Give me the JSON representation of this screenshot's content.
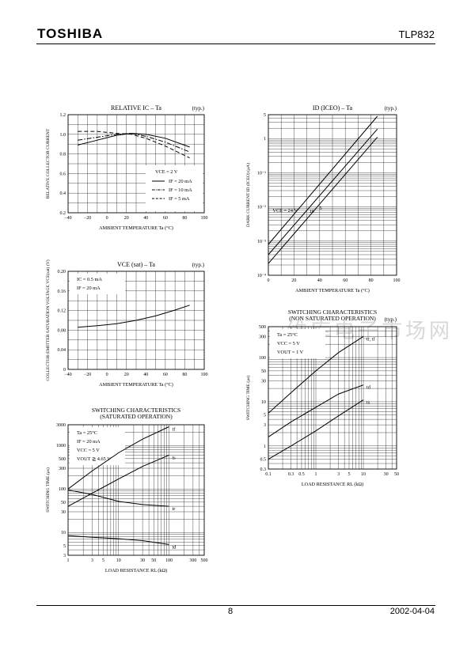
{
  "header": {
    "brand": "TOSHIBA",
    "part": "TLP832"
  },
  "footer": {
    "page": "8",
    "date": "2002-04-04"
  },
  "watermark": "维库电子市场网",
  "chart_data": [
    {
      "id": "relative-ic-ta",
      "type": "line",
      "title": "RELATIVE IC – Ta",
      "typ": "(typ.)",
      "xlabel": "AMBIENT TEMPERATURE   Ta   (°C)",
      "ylabel": "RELATIVE COLLECTOR CURRENT",
      "xlim": [
        -40,
        100
      ],
      "ylim": [
        0.2,
        1.2
      ],
      "x_ticks": [
        "−40",
        "−20",
        "0",
        "20",
        "40",
        "60",
        "80",
        "100"
      ],
      "y_ticks": [
        "0.2",
        "0.4",
        "0.6",
        "0.8",
        "1.0",
        "1.2"
      ],
      "conditions": [
        "VCE = 2 V"
      ],
      "legend": "inside bottom-right",
      "series": [
        {
          "name": "IF = 20 mA",
          "style": "solid",
          "x": [
            -30,
            -10,
            10,
            25,
            40,
            60,
            85
          ],
          "y": [
            0.89,
            0.94,
            0.99,
            1.01,
            1.0,
            0.96,
            0.87
          ]
        },
        {
          "name": "IF = 10 mA",
          "style": "dashdot",
          "x": [
            -30,
            -10,
            10,
            25,
            40,
            60,
            85
          ],
          "y": [
            0.94,
            0.97,
            1.0,
            1.01,
            0.98,
            0.92,
            0.82
          ]
        },
        {
          "name": "IF = 5 mA",
          "style": "dashed",
          "x": [
            -30,
            -10,
            10,
            25,
            40,
            60,
            85
          ],
          "y": [
            1.03,
            1.03,
            1.01,
            1.0,
            0.96,
            0.88,
            0.76
          ]
        }
      ]
    },
    {
      "id": "id-iceo-ta",
      "type": "line",
      "title": "ID (ICEO) – Ta",
      "typ": "(typ.)",
      "xlabel": "AMBIENT TEMPERATURE   Ta   (°C)",
      "ylabel": "DARK CURRENT   ID (ICEO)   (μA)",
      "xlim": [
        0,
        100
      ],
      "ylim": [
        0.0001,
        5
      ],
      "yscale": "log",
      "x_ticks": [
        "0",
        "20",
        "40",
        "60",
        "80",
        "100"
      ],
      "y_ticks": [
        "10⁻⁴",
        "10⁻³",
        "10⁻²",
        "10⁻¹",
        "1",
        "5"
      ],
      "series": [
        {
          "name": "VCE = 24 V",
          "x": [
            0,
            85
          ],
          "y": [
            0.0008,
            4.5
          ]
        },
        {
          "name": "10",
          "x": [
            0,
            85
          ],
          "y": [
            0.0004,
            1.9
          ]
        },
        {
          "name": "5",
          "x": [
            0,
            85
          ],
          "y": [
            0.00022,
            1.1
          ]
        }
      ]
    },
    {
      "id": "vcesat-ta",
      "type": "line",
      "title": "VCE (sat) – Ta",
      "typ": "(typ.)",
      "xlabel": "AMBIENT TEMPERATURE   Ta   (°C)",
      "ylabel": "COLLECTOR-EMITTER SATURATION VOLTAGE   VCE(sat)   (V)",
      "xlim": [
        -40,
        100
      ],
      "ylim": [
        0,
        0.2
      ],
      "x_ticks": [
        "−40",
        "−20",
        "0",
        "20",
        "40",
        "60",
        "80",
        "100"
      ],
      "y_ticks": [
        "0",
        "0.04",
        "0.08",
        "0.12",
        "0.16",
        "0.20"
      ],
      "conditions": [
        "IC = 0.5 mA",
        "IF = 20 mA"
      ],
      "series": [
        {
          "name": "",
          "x": [
            -30,
            -10,
            10,
            30,
            50,
            70,
            85
          ],
          "y": [
            0.086,
            0.089,
            0.093,
            0.1,
            0.109,
            0.121,
            0.131
          ]
        }
      ]
    },
    {
      "id": "switching-sat",
      "type": "line",
      "title": "SWITCHING CHARACTERISTICS",
      "subtitle": "(SATURATED OPERATION)",
      "xlabel": "LOAD RESISTANCE   RL   (kΩ)",
      "ylabel": "SWITCHING TIME   (μs)",
      "xlim": [
        1,
        500
      ],
      "ylim": [
        3,
        3000
      ],
      "xscale": "log",
      "yscale": "log",
      "x_ticks": [
        "1",
        "3",
        "5",
        "10",
        "30",
        "50",
        "100",
        "300",
        "500"
      ],
      "y_ticks": [
        "3",
        "5",
        "10",
        "30",
        "50",
        "100",
        "300",
        "500",
        "1000",
        "3000"
      ],
      "conditions": [
        "Ta = 25°C",
        "IF = 20 mA",
        "VCC = 5 V",
        "VOUT ≧ 4.65 V"
      ],
      "series": [
        {
          "name": "tf",
          "x": [
            1,
            3,
            10,
            30,
            100
          ],
          "y": [
            100,
            260,
            680,
            1400,
            2700
          ]
        },
        {
          "name": "ts",
          "x": [
            1,
            3,
            10,
            30,
            100
          ],
          "y": [
            40,
            80,
            170,
            330,
            600
          ]
        },
        {
          "name": "tr",
          "x": [
            1,
            3,
            10,
            30,
            100
          ],
          "y": [
            95,
            75,
            52,
            44,
            40
          ]
        },
        {
          "name": "td",
          "x": [
            1,
            3,
            10,
            30,
            100
          ],
          "y": [
            8.5,
            7.8,
            7.2,
            6.5,
            5.3
          ]
        }
      ]
    },
    {
      "id": "switching-nonsat",
      "type": "line",
      "title": "SWITCHING CHARACTERISTICS",
      "subtitle": "(NON SATURATED OPERATION)",
      "typ": "(typ.)",
      "xlabel": "LOAD RESISTANCE   RL   (kΩ)",
      "ylabel": "SWITCHING TIME   (μs)",
      "xlim": [
        0.1,
        50
      ],
      "ylim": [
        0.3,
        500
      ],
      "xscale": "log",
      "yscale": "log",
      "x_ticks": [
        "0.1",
        "0.3",
        "0.5",
        "1",
        "3",
        "5",
        "10",
        "30",
        "50"
      ],
      "y_ticks": [
        "0.3",
        "0.5",
        "1",
        "3",
        "5",
        "10",
        "30",
        "50",
        "100",
        "300",
        "500"
      ],
      "conditions": [
        "Ta = 25°C",
        "VCC = 5 V",
        "VOUT = 1 V"
      ],
      "series": [
        {
          "name": "tr, tf",
          "x": [
            0.1,
            0.3,
            1,
            3,
            10
          ],
          "y": [
            5.5,
            16,
            50,
            130,
            300
          ]
        },
        {
          "name": "td",
          "x": [
            0.1,
            0.3,
            1,
            3,
            10
          ],
          "y": [
            1.6,
            3.5,
            7.5,
            15,
            24
          ]
        },
        {
          "name": "ts",
          "x": [
            0.1,
            0.3,
            1,
            3,
            10
          ],
          "y": [
            0.5,
            1,
            2.2,
            4.8,
            11
          ]
        }
      ]
    }
  ]
}
